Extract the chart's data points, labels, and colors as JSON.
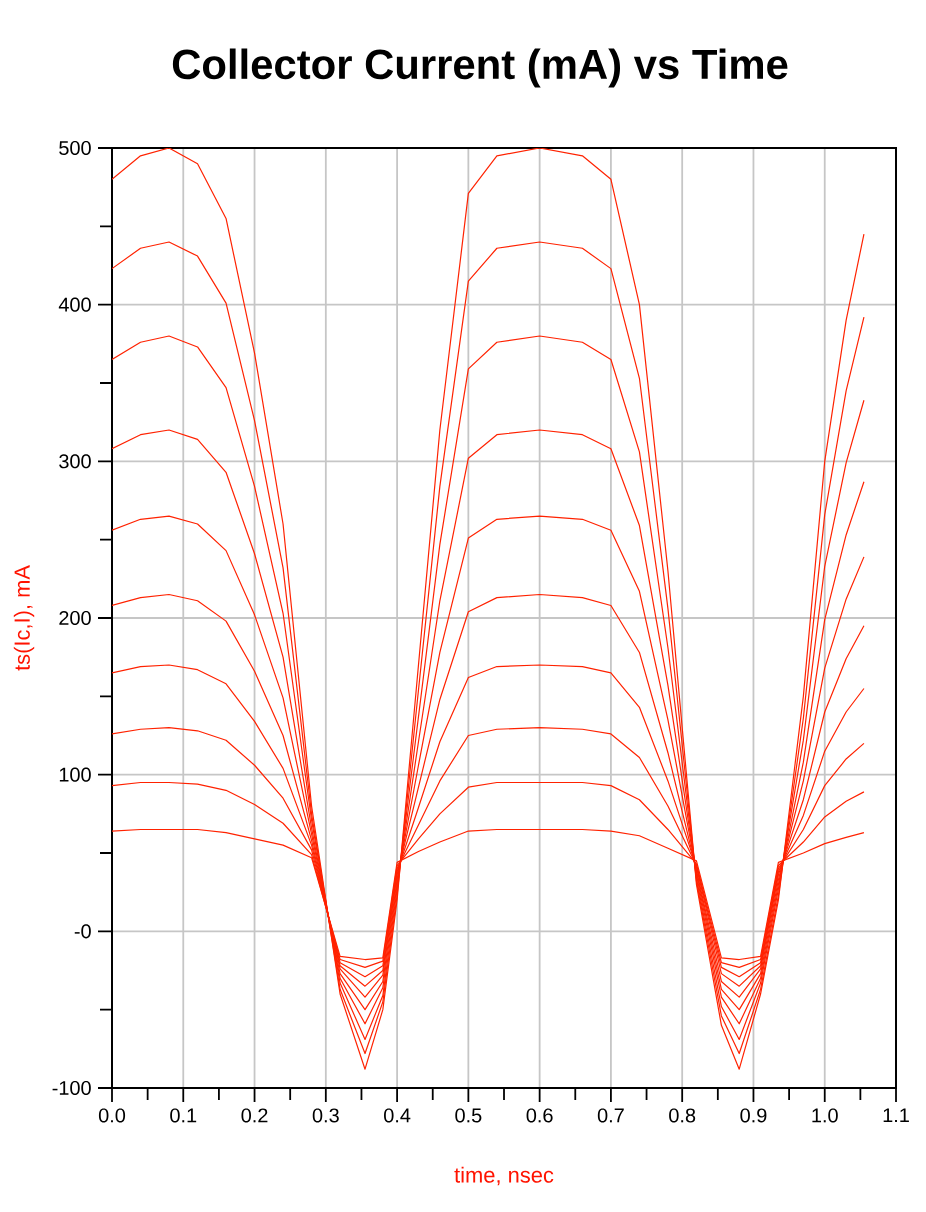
{
  "chart_data": {
    "type": "line",
    "title": "Collector Current (mA) vs Time",
    "xlabel": "time, nsec",
    "ylabel": "ts(Ic,I), mA",
    "x": [
      0,
      0.04,
      0.08,
      0.12,
      0.16,
      0.2,
      0.24,
      0.28,
      0.32,
      0.355,
      0.38,
      0.4,
      0.43,
      0.46,
      0.5,
      0.54,
      0.6,
      0.66,
      0.7,
      0.74,
      0.78,
      0.82,
      0.855,
      0.88,
      0.91,
      0.935,
      0.97,
      1.0,
      1.03,
      1.055
    ],
    "series": [
      {
        "color": "#ff2200",
        "values": [
          480,
          495,
          500,
          490,
          455,
          369,
          260,
          80,
          -40,
          -88,
          -50,
          20,
          170,
          320,
          471,
          495,
          500,
          495,
          480,
          400,
          230,
          30,
          -60,
          -88,
          -40,
          20,
          150,
          300,
          390,
          445
        ]
      },
      {
        "color": "#ff2200",
        "values": [
          423,
          436,
          440,
          431,
          401,
          326,
          232,
          75,
          -37,
          -78,
          -45,
          23,
          154,
          284,
          415,
          436,
          440,
          436,
          423,
          353,
          206,
          32,
          -54,
          -78,
          -37,
          23,
          136,
          266,
          345,
          392
        ]
      },
      {
        "color": "#ff2200",
        "values": [
          365,
          376,
          380,
          373,
          347,
          284,
          203,
          71,
          -33,
          -69,
          -41,
          27,
          137,
          247,
          359,
          376,
          380,
          376,
          365,
          306,
          181,
          34,
          -48,
          -69,
          -33,
          27,
          122,
          233,
          299,
          339
        ]
      },
      {
        "color": "#ff2200",
        "values": [
          308,
          317,
          320,
          314,
          293,
          241,
          175,
          66,
          -30,
          -59,
          -36,
          30,
          121,
          211,
          302,
          317,
          320,
          317,
          308,
          259,
          157,
          36,
          -42,
          -59,
          -30,
          30,
          108,
          199,
          253,
          287
        ]
      },
      {
        "color": "#ff2200",
        "values": [
          256,
          263,
          265,
          260,
          243,
          202,
          149,
          62,
          -27,
          -50,
          -32,
          33,
          106,
          178,
          251,
          263,
          265,
          263,
          256,
          217,
          135,
          38,
          -37,
          -50,
          -27,
          33,
          96,
          168,
          212,
          239
        ]
      },
      {
        "color": "#ff2200",
        "values": [
          208,
          213,
          215,
          211,
          198,
          166,
          125,
          58,
          -24,
          -42,
          -28,
          36,
          92,
          148,
          204,
          213,
          215,
          213,
          208,
          178,
          114,
          39,
          -32,
          -42,
          -24,
          36,
          84,
          140,
          174,
          195
        ]
      },
      {
        "color": "#ff2200",
        "values": [
          165,
          169,
          170,
          167,
          158,
          134,
          104,
          55,
          -22,
          -35,
          -25,
          38,
          79,
          121,
          162,
          169,
          170,
          169,
          165,
          143,
          96,
          41,
          -27,
          -35,
          -22,
          38,
          74,
          115,
          140,
          155
        ]
      },
      {
        "color": "#ff2200",
        "values": [
          126,
          129,
          130,
          128,
          122,
          106,
          85,
          52,
          -20,
          -29,
          -22,
          40,
          68,
          96,
          125,
          129,
          130,
          129,
          126,
          111,
          80,
          42,
          -23,
          -29,
          -20,
          40,
          65,
          93,
          110,
          120
        ]
      },
      {
        "color": "#ff2200",
        "values": [
          93,
          95,
          95,
          94,
          90,
          81,
          69,
          49,
          -18,
          -23,
          -19,
          42,
          59,
          75,
          92,
          95,
          95,
          95,
          93,
          84,
          65,
          43,
          -20,
          -23,
          -18,
          42,
          57,
          73,
          83,
          89
        ]
      },
      {
        "color": "#ff2200",
        "values": [
          64,
          65,
          65,
          65,
          63,
          59,
          55,
          47,
          -16,
          -18,
          -17,
          44,
          51,
          57,
          64,
          65,
          65,
          65,
          64,
          61,
          53,
          45,
          -17,
          -18,
          -16,
          44,
          50,
          56,
          60,
          63
        ]
      }
    ],
    "xlim": [
      0,
      1.1
    ],
    "ylim": [
      -100,
      500
    ],
    "xticks": [
      {
        "value": 0,
        "label": "0.0"
      },
      0.1,
      0.2,
      0.3,
      0.4,
      0.5,
      0.6,
      0.7,
      0.8,
      0.9,
      {
        "value": 1,
        "label": "1.0"
      },
      1.1
    ],
    "yticks": [
      -100,
      {
        "value": 0,
        "label": "-0"
      },
      100,
      200,
      300,
      400,
      500
    ],
    "grid": true,
    "marker": "none",
    "line_style": "solid"
  }
}
